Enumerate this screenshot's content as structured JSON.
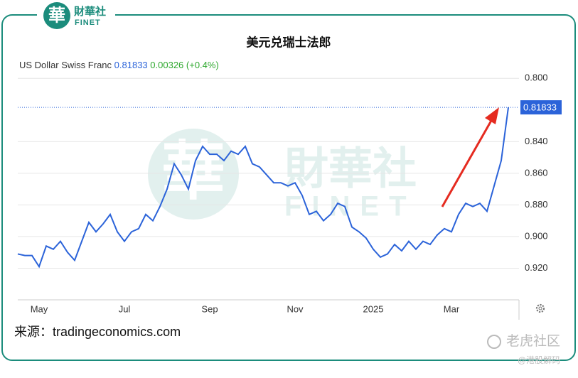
{
  "header": {
    "logo_char": "華",
    "logo_name": "財華社",
    "logo_en": "FINET"
  },
  "watermark": {
    "char": "華",
    "name": "財華社",
    "en": "FINET"
  },
  "source": {
    "label": "来源：",
    "site": "tradingeconomics.com"
  },
  "footer": {
    "community": "老虎社区",
    "handle": "@港股解码"
  },
  "chart_data": {
    "type": "line",
    "title": "美元兑瑞士法郎",
    "series_name": "US Dollar Swiss Franc",
    "last_value": 0.81833,
    "change": 0.00326,
    "change_percent": {
      "value": 0.4,
      "label": "(+0.4%)"
    },
    "categories": [
      null,
      null,
      null,
      "May",
      null,
      null,
      null,
      null,
      null,
      null,
      null,
      null,
      null,
      null,
      null,
      "Jul",
      null,
      null,
      null,
      null,
      null,
      null,
      null,
      null,
      null,
      null,
      null,
      "Sep",
      null,
      null,
      null,
      null,
      null,
      null,
      null,
      null,
      null,
      null,
      null,
      "Nov",
      null,
      null,
      null,
      null,
      null,
      null,
      null,
      null,
      null,
      null,
      "2025",
      null,
      null,
      null,
      null,
      null,
      null,
      null,
      null,
      null,
      null,
      "Mar",
      null,
      null,
      null,
      null,
      null,
      null,
      null,
      null
    ],
    "values": [
      0.911,
      0.912,
      0.912,
      0.919,
      0.906,
      0.908,
      0.903,
      0.91,
      0.915,
      0.903,
      0.891,
      0.897,
      0.892,
      0.886,
      0.897,
      0.903,
      0.897,
      0.895,
      0.886,
      0.89,
      0.881,
      0.87,
      0.854,
      0.861,
      0.87,
      0.852,
      0.843,
      0.848,
      0.848,
      0.852,
      0.846,
      0.848,
      0.843,
      0.854,
      0.856,
      0.861,
      0.866,
      0.866,
      0.868,
      0.866,
      0.874,
      0.886,
      0.884,
      0.89,
      0.886,
      0.879,
      0.881,
      0.894,
      0.897,
      0.901,
      0.908,
      0.913,
      0.911,
      0.905,
      0.909,
      0.903,
      0.908,
      0.903,
      0.905,
      0.899,
      0.895,
      0.897,
      0.886,
      0.879,
      0.881,
      0.879,
      0.884,
      0.868,
      0.852,
      0.81833
    ],
    "color": "#2b63d9",
    "ylim": [
      0.79,
      0.94
    ],
    "inverted": true,
    "yticks": [
      {
        "value": 0.8,
        "label": "0.800"
      },
      {
        "value": 0.84,
        "label": "0.840"
      },
      {
        "value": 0.86,
        "label": "0.860"
      },
      {
        "value": 0.88,
        "label": "0.880"
      },
      {
        "value": 0.9,
        "label": "0.900"
      },
      {
        "value": 0.92,
        "label": "0.920"
      }
    ],
    "grid": true
  }
}
